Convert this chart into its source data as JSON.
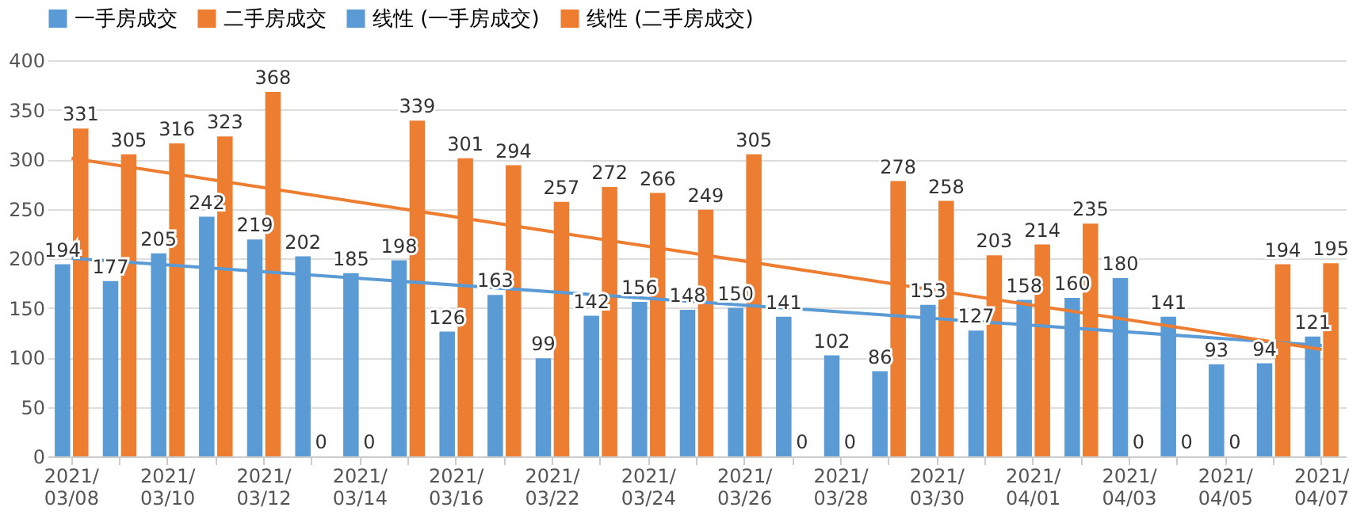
{
  "chart_data": {
    "type": "bar",
    "categories": [
      "2021/03/08",
      null,
      "2021/03/10",
      null,
      "2021/03/12",
      null,
      "2021/03/14",
      null,
      "2021/03/16",
      null,
      "2021/03/22",
      null,
      "2021/03/24",
      null,
      "2021/03/26",
      null,
      "2021/03/28",
      null,
      "2021/03/30",
      null,
      "2021/04/01",
      null,
      "2021/04/03",
      null,
      "2021/04/05",
      null,
      "2021/04/07"
    ],
    "series": [
      {
        "name": "一手房成交",
        "type": "bar",
        "color": "#5b9bd5",
        "values": [
          194,
          177,
          205,
          242,
          219,
          202,
          185,
          198,
          126,
          163,
          99,
          142,
          156,
          148,
          150,
          141,
          102,
          86,
          153,
          127,
          158,
          160,
          180,
          141,
          93,
          94,
          121
        ],
        "value_labels": [
          "194",
          "177",
          "205",
          "242",
          "219",
          "202",
          "185",
          "198",
          "126",
          "163",
          "99",
          "142",
          "156",
          "148",
          "150",
          "141",
          "102",
          "86",
          "153",
          "127",
          "158",
          "160",
          "180",
          "141",
          "93",
          "94",
          "121"
        ]
      },
      {
        "name": "二手房成交",
        "type": "bar",
        "color": "#ed7d31",
        "values": [
          331,
          305,
          316,
          323,
          368,
          0,
          0,
          339,
          301,
          294,
          257,
          272,
          266,
          249,
          305,
          0,
          0,
          278,
          258,
          203,
          214,
          235,
          0,
          0,
          0,
          194,
          195
        ],
        "value_labels": [
          "331",
          "305",
          "316",
          "323",
          "368",
          "0",
          "0",
          "339",
          "301",
          "294",
          "257",
          "272",
          "266",
          "249",
          "305",
          "0",
          "0",
          "278",
          "258",
          "203",
          "214",
          "235",
          "0",
          "0",
          "0",
          "194",
          "195"
        ]
      },
      {
        "name": "线性 (一手房成交)",
        "type": "line",
        "color": "#5b9bd5",
        "values": [
          200,
          null,
          null,
          null,
          null,
          null,
          null,
          null,
          null,
          null,
          null,
          null,
          null,
          null,
          null,
          null,
          null,
          null,
          null,
          null,
          null,
          null,
          null,
          null,
          null,
          null,
          112
        ]
      },
      {
        "name": "线性 (二手房成交)",
        "type": "line",
        "color": "#ed7d31",
        "values": [
          301,
          null,
          null,
          null,
          null,
          null,
          null,
          null,
          null,
          null,
          null,
          null,
          null,
          null,
          null,
          null,
          null,
          null,
          null,
          null,
          null,
          null,
          null,
          null,
          null,
          null,
          108
        ]
      }
    ],
    "ylim": [
      0,
      400
    ],
    "yticks": [
      0,
      50,
      100,
      150,
      200,
      250,
      300,
      350,
      400
    ],
    "grid": "y",
    "legend": "top"
  }
}
